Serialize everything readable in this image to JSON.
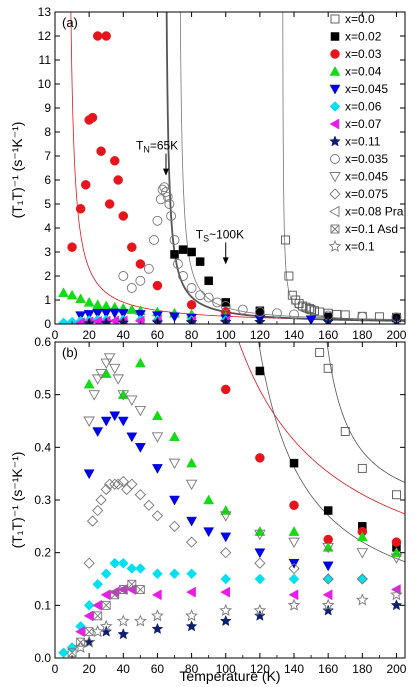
{
  "figure": {
    "xlabel": "Temperature (K)"
  },
  "chart_data": [
    {
      "panel": "(a)",
      "type": "scatter",
      "xlim": [
        0,
        205
      ],
      "ylim": [
        0,
        13
      ],
      "xticks": [
        0,
        20,
        40,
        60,
        80,
        100,
        120,
        140,
        160,
        180,
        200
      ],
      "yticks": [
        0,
        1,
        2,
        3,
        4,
        5,
        6,
        7,
        8,
        9,
        10,
        11,
        12,
        13
      ],
      "ylabel": "(T₁T)⁻¹ (s⁻¹K⁻¹)",
      "legend_position": "top-right",
      "annotations": [
        {
          "text": "T",
          "sub": "N",
          "rest": "=65K",
          "x": 65,
          "y": 6.6
        },
        {
          "text": "T",
          "sub": "S",
          "rest": "~100K",
          "x": 100,
          "y": 2.9
        }
      ],
      "series": [
        {
          "name": "x=0.0",
          "marker": "square-open",
          "color": "#555555",
          "x": [
            135,
            137,
            139,
            141,
            143,
            145,
            147,
            149,
            150,
            152,
            155,
            160,
            165,
            170,
            180,
            190,
            200
          ],
          "y": [
            3.5,
            2.0,
            1.2,
            1.0,
            0.85,
            0.75,
            0.7,
            0.65,
            0.6,
            0.55,
            0.5,
            0.45,
            0.4,
            0.38,
            0.32,
            0.3,
            0.28
          ]
        },
        {
          "name": "x=0.02",
          "marker": "square-filled",
          "color": "#000000",
          "x": [
            70,
            75,
            80,
            85,
            90,
            100,
            120,
            160,
            200
          ],
          "y": [
            2.9,
            3.1,
            3.0,
            2.6,
            1.8,
            0.9,
            0.55,
            0.3,
            0.25
          ]
        },
        {
          "name": "x=0.03",
          "marker": "circle-filled",
          "color": "#e8141c",
          "x": [
            10,
            15,
            18,
            20,
            22,
            25,
            27,
            30,
            32,
            35,
            37,
            40,
            45,
            50,
            60,
            80,
            100
          ],
          "y": [
            3.2,
            4.8,
            5.8,
            8.5,
            8.6,
            12.0,
            7.2,
            12.0,
            5.0,
            6.8,
            6.0,
            4.5,
            3.2,
            2.5,
            1.6,
            0.8,
            0.5
          ]
        },
        {
          "name": "x=0.04",
          "marker": "triangle-up-filled",
          "color": "#14dc14",
          "x": [
            5,
            10,
            15,
            20,
            25,
            30,
            35,
            40,
            45,
            50,
            60,
            70,
            80,
            100
          ],
          "y": [
            1.3,
            1.2,
            1.05,
            0.9,
            0.8,
            0.75,
            0.7,
            0.65,
            0.6,
            0.55,
            0.5,
            0.45,
            0.4,
            0.3
          ]
        },
        {
          "name": "x=0.045",
          "marker": "triangle-down-filled",
          "color": "#0000e6",
          "x": [
            15,
            20,
            25,
            30,
            35,
            40,
            50,
            60,
            70,
            80,
            100,
            120,
            150
          ],
          "y": [
            0.35,
            0.4,
            0.45,
            0.45,
            0.46,
            0.44,
            0.4,
            0.35,
            0.3,
            0.25,
            0.22,
            0.2,
            0.18
          ]
        },
        {
          "name": "x=0.06",
          "marker": "diamond-filled",
          "color": "#00e0f0",
          "x": [
            5,
            10,
            15,
            20,
            25,
            30,
            40,
            50,
            60,
            80,
            100
          ],
          "y": [
            0.05,
            0.08,
            0.12,
            0.15,
            0.17,
            0.17,
            0.17,
            0.16,
            0.16,
            0.15,
            0.15
          ]
        },
        {
          "name": "x=0.07",
          "marker": "triangle-left-filled",
          "color": "#e61ee6",
          "x": [
            15,
            20,
            25,
            30,
            35,
            40,
            50,
            60,
            80,
            100
          ],
          "y": [
            0.05,
            0.09,
            0.11,
            0.12,
            0.13,
            0.13,
            0.13,
            0.13,
            0.12,
            0.12
          ]
        },
        {
          "name": "x=0.11",
          "marker": "star-filled",
          "color": "#0d1f6e",
          "x": [
            20,
            30,
            40,
            60,
            80,
            100,
            120,
            160,
            200
          ],
          "y": [
            0.02,
            0.03,
            0.05,
            0.06,
            0.07,
            0.08,
            0.08,
            0.09,
            0.1
          ]
        },
        {
          "name": "x=0.035",
          "marker": "circle-open",
          "color": "#777777",
          "x": [
            40,
            45,
            50,
            55,
            58,
            60,
            62,
            63,
            64,
            65,
            66,
            67,
            68,
            70,
            72,
            75,
            80,
            85,
            90,
            95,
            100,
            110,
            120,
            130,
            140,
            160,
            180,
            200
          ],
          "y": [
            2.0,
            1.5,
            1.8,
            2.3,
            3.5,
            4.3,
            5.2,
            5.6,
            5.7,
            5.5,
            5.3,
            5.0,
            4.5,
            3.5,
            2.5,
            2.0,
            1.5,
            1.2,
            1.1,
            0.9,
            0.75,
            0.6,
            0.5,
            0.45,
            0.4,
            0.35,
            0.3,
            0.28
          ]
        },
        {
          "name": "x=0.045",
          "marker": "triangle-down-open",
          "color": "#777777",
          "x": [],
          "y": []
        },
        {
          "name": "x=0.075",
          "marker": "diamond-open",
          "color": "#777777",
          "x": [],
          "y": []
        },
        {
          "name": "x=0.08 Pra",
          "marker": "triangle-left-open",
          "color": "#777777",
          "x": [],
          "y": []
        },
        {
          "name": "x=0.1 Asd",
          "marker": "xbox-open",
          "color": "#777777",
          "x": [],
          "y": []
        },
        {
          "name": "x=0.1",
          "marker": "star-open",
          "color": "#777777",
          "x": [],
          "y": []
        }
      ],
      "fits": [
        {
          "color": "#e8141c",
          "width": 0.8,
          "A": 30,
          "T0": 7,
          "c": 0
        },
        {
          "color": "#555555",
          "width": 1.8,
          "A": 18,
          "T0": 64,
          "c": 0
        },
        {
          "color": "#777777",
          "width": 0.8,
          "A": 18,
          "T0": 72,
          "c": 0.05
        },
        {
          "color": "#777777",
          "width": 0.8,
          "A": 5,
          "T0": 133,
          "c": 0.1
        }
      ]
    },
    {
      "panel": "(b)",
      "type": "scatter",
      "xlim": [
        0,
        205
      ],
      "ylim": [
        0,
        0.6
      ],
      "xticks": [
        0,
        20,
        40,
        60,
        80,
        100,
        120,
        140,
        160,
        180,
        200
      ],
      "yticks": [
        0.0,
        0.1,
        0.2,
        0.3,
        0.4,
        0.5,
        0.6
      ],
      "ylabel": "(T₁T)⁻¹ (s⁻¹K⁻¹)",
      "series": [
        {
          "name": "x=0.0",
          "marker": "square-open",
          "color": "#555555",
          "x": [
            155,
            160,
            170,
            180,
            200
          ],
          "y": [
            0.58,
            0.55,
            0.43,
            0.36,
            0.31
          ]
        },
        {
          "name": "x=0.02",
          "marker": "square-filled",
          "color": "#000000",
          "x": [
            120,
            140,
            160,
            180,
            200
          ],
          "y": [
            0.545,
            0.37,
            0.28,
            0.25,
            0.21
          ]
        },
        {
          "name": "x=0.03",
          "marker": "circle-filled",
          "color": "#e8141c",
          "x": [
            100,
            120,
            140,
            160,
            180,
            200
          ],
          "y": [
            0.51,
            0.38,
            0.29,
            0.225,
            0.24,
            0.22
          ]
        },
        {
          "name": "x=0.04",
          "marker": "triangle-up-filled",
          "color": "#14dc14",
          "x": [
            20,
            30,
            40,
            50,
            60,
            70,
            80,
            90,
            100,
            120,
            140,
            160,
            180,
            200
          ],
          "y": [
            0.52,
            0.54,
            0.5,
            0.56,
            0.46,
            0.42,
            0.37,
            0.3,
            0.28,
            0.24,
            0.24,
            0.21,
            0.23,
            0.2
          ]
        },
        {
          "name": "x=0.045",
          "marker": "triangle-down-filled",
          "color": "#0000e6",
          "x": [
            20,
            25,
            30,
            35,
            40,
            45,
            50,
            60,
            70,
            80,
            90,
            100,
            120,
            140,
            160
          ],
          "y": [
            0.35,
            0.43,
            0.45,
            0.46,
            0.45,
            0.42,
            0.4,
            0.36,
            0.3,
            0.26,
            0.24,
            0.23,
            0.2,
            0.18,
            0.175
          ]
        },
        {
          "name": "x=0.06",
          "marker": "diamond-filled",
          "color": "#00e0f0",
          "x": [
            5,
            10,
            15,
            20,
            25,
            30,
            35,
            40,
            45,
            50,
            60,
            70,
            80,
            100,
            120,
            140,
            160,
            180
          ],
          "y": [
            0.01,
            0.02,
            0.06,
            0.1,
            0.14,
            0.16,
            0.18,
            0.18,
            0.17,
            0.17,
            0.16,
            0.16,
            0.16,
            0.15,
            0.15,
            0.15,
            0.15,
            0.15
          ]
        },
        {
          "name": "x=0.07",
          "marker": "triangle-left-filled",
          "color": "#e61ee6",
          "x": [
            15,
            20,
            25,
            30,
            35,
            40,
            45,
            60,
            80,
            100,
            140,
            160,
            200
          ],
          "y": [
            0.05,
            0.08,
            0.1,
            0.12,
            0.125,
            0.13,
            0.13,
            0.12,
            0.125,
            0.125,
            0.12,
            0.12,
            0.13
          ]
        },
        {
          "name": "x=0.11",
          "marker": "star-filled",
          "color": "#0d1f6e",
          "x": [
            20,
            30,
            40,
            60,
            80,
            100,
            120,
            160,
            200
          ],
          "y": [
            0.03,
            0.05,
            0.045,
            0.055,
            0.06,
            0.07,
            0.08,
            0.09,
            0.1
          ]
        },
        {
          "name": "x=0.045",
          "marker": "triangle-down-open",
          "color": "#777777",
          "x": [
            20,
            23,
            25,
            27,
            30,
            32,
            35,
            37,
            40,
            45,
            50,
            60,
            70,
            80,
            100,
            120,
            140,
            160,
            180,
            200
          ],
          "y": [
            0.45,
            0.5,
            0.53,
            0.54,
            0.56,
            0.57,
            0.55,
            0.53,
            0.5,
            0.49,
            0.47,
            0.42,
            0.37,
            0.33,
            0.27,
            0.235,
            0.22,
            0.21,
            0.2,
            0.19
          ]
        },
        {
          "name": "x=0.075",
          "marker": "diamond-open",
          "color": "#777777",
          "x": [
            20,
            22,
            25,
            27,
            30,
            32,
            35,
            37,
            40,
            42,
            45,
            50,
            55,
            60,
            70,
            80,
            100,
            120,
            140,
            160,
            180
          ],
          "y": [
            0.18,
            0.26,
            0.28,
            0.3,
            0.32,
            0.33,
            0.33,
            0.33,
            0.335,
            0.32,
            0.33,
            0.31,
            0.29,
            0.27,
            0.25,
            0.22,
            0.2,
            0.18,
            0.17,
            0.15,
            0.15
          ]
        },
        {
          "name": "x=0.08 Pra",
          "marker": "triangle-left-open",
          "color": "#777777",
          "x": [],
          "y": []
        },
        {
          "name": "x=0.1 Asd",
          "marker": "xbox-open",
          "color": "#777777",
          "x": [
            10,
            15,
            20,
            25,
            30,
            35,
            40,
            45,
            50
          ],
          "y": [
            0.01,
            0.03,
            0.05,
            0.08,
            0.1,
            0.12,
            0.13,
            0.14,
            0.13
          ]
        },
        {
          "name": "x=0.1",
          "marker": "star-open",
          "color": "#777777",
          "x": [
            15,
            20,
            25,
            30,
            40,
            50,
            60,
            80,
            100,
            120,
            140,
            160,
            180,
            200
          ],
          "y": [
            0.02,
            0.03,
            0.05,
            0.06,
            0.07,
            0.07,
            0.08,
            0.08,
            0.09,
            0.09,
            0.1,
            0.1,
            0.11,
            0.12
          ]
        }
      ],
      "fits": [
        {
          "color": "#e8141c",
          "width": 0.8,
          "A": 30,
          "T0": 50,
          "c": 0.08
        },
        {
          "color": "#555555",
          "width": 0.8,
          "A": 15,
          "T0": 92,
          "c": 0.05
        },
        {
          "color": "#555555",
          "width": 0.8,
          "A": 5,
          "T0": 145,
          "c": 0.25
        }
      ]
    }
  ]
}
